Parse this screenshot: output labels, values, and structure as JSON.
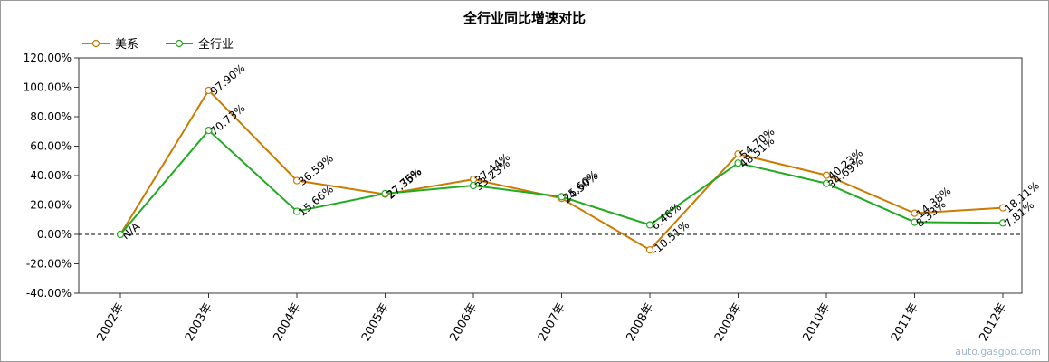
{
  "watermark": "auto.gasgoo.com",
  "chart_data": {
    "type": "line",
    "title": "全行业同比增速对比",
    "xlabel": "",
    "ylabel": "",
    "categories": [
      "2002年",
      "2003年",
      "2004年",
      "2005年",
      "2006年",
      "2007年",
      "2008年",
      "2009年",
      "2010年",
      "2011年",
      "2012年"
    ],
    "ylim": [
      -40,
      120
    ],
    "yticks": [
      -40,
      -20,
      0,
      20,
      40,
      60,
      80,
      100,
      120
    ],
    "ytick_labels": [
      "-40.00%",
      "-20.00%",
      "0.00%",
      "20.00%",
      "40.00%",
      "60.00%",
      "80.00%",
      "100.00%",
      "120.00%"
    ],
    "legend_position": "top-left",
    "grid": false,
    "zero_line": "dashed",
    "series": [
      {
        "name": "美系",
        "color": "#cc7a00",
        "values": [
          0,
          97.9,
          36.59,
          27.35,
          37.44,
          24.5,
          -10.51,
          54.7,
          40.23,
          14.38,
          18.11
        ],
        "labels": [
          "N/A",
          "97.90%",
          "36.59%",
          "27.35%",
          "37.44%",
          "24.50%",
          "-10.51%",
          "54.70%",
          "40.23%",
          "14.38%",
          "18.11%"
        ]
      },
      {
        "name": "全行业",
        "color": "#22aa22",
        "values": [
          0,
          70.73,
          15.66,
          27.76,
          33.23,
          25.6,
          6.46,
          48.51,
          34.69,
          8.33,
          7.81
        ],
        "labels": [
          "",
          "70.73%",
          "15.66%",
          "27.76%",
          "33.23%",
          "25.60%",
          "6.46%",
          "48.51%",
          "34.69%",
          "8.33%",
          "7.81%"
        ]
      }
    ]
  }
}
